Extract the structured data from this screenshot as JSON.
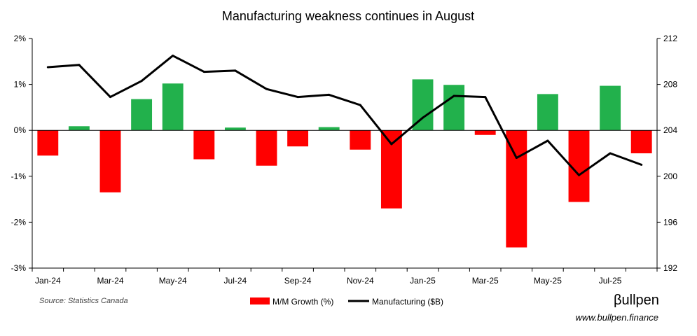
{
  "chart_data": {
    "type": "bar+line",
    "title": "Manufacturing weakness continues in August",
    "categories": [
      "Jan-24",
      "Feb-24",
      "Mar-24",
      "Apr-24",
      "May-24",
      "Jun-24",
      "Jul-24",
      "Aug-24",
      "Sep-24",
      "Oct-24",
      "Nov-24",
      "Dec-24",
      "Jan-25",
      "Feb-25",
      "Mar-25",
      "Apr-25",
      "May-25",
      "Jun-25",
      "Jul-25",
      "Aug-25"
    ],
    "x_tick_labels": [
      "Jan-24",
      "Mar-24",
      "May-24",
      "Jul-24",
      "Sep-24",
      "Nov-24",
      "Jan-25",
      "Mar-25",
      "May-25",
      "Jul-25"
    ],
    "series": [
      {
        "name": "M/M Growth (%)",
        "type": "bar",
        "axis": "left",
        "values": [
          -0.55,
          0.09,
          -1.35,
          0.68,
          1.02,
          -0.63,
          0.06,
          -0.77,
          -0.35,
          0.07,
          -0.42,
          -1.7,
          1.11,
          0.99,
          -0.1,
          -2.55,
          0.79,
          -1.56,
          0.97,
          -0.5
        ]
      },
      {
        "name": "Manufacturing ($B)",
        "type": "line",
        "axis": "right",
        "values": [
          209.5,
          209.7,
          206.9,
          208.3,
          210.5,
          209.1,
          209.2,
          207.6,
          206.9,
          207.1,
          206.2,
          202.8,
          205.1,
          207.0,
          206.9,
          201.6,
          203.1,
          200.1,
          202.0,
          201.0
        ]
      }
    ],
    "y_left": {
      "ylim": [
        -3,
        2
      ],
      "ticks": [
        -3,
        -2,
        -1,
        0,
        1,
        2
      ],
      "tick_labels": [
        "-3%",
        "-2%",
        "-1%",
        "0%",
        "1%",
        "2%"
      ]
    },
    "y_right": {
      "ylim": [
        192,
        212
      ],
      "ticks": [
        192,
        196,
        200,
        204,
        208,
        212
      ],
      "tick_labels": [
        "192",
        "196",
        "200",
        "204",
        "208",
        "212"
      ]
    },
    "colors": {
      "positive": "#22b14c",
      "negative": "#ff0000",
      "line": "#000000"
    },
    "legend": {
      "position": "bottom",
      "entries": [
        "M/M Growth (%)",
        "Manufacturing ($B)"
      ]
    }
  },
  "footer": {
    "source": "Source: Statistics Canada",
    "brand": "βullpen",
    "website": "www.bullpen.finance"
  }
}
